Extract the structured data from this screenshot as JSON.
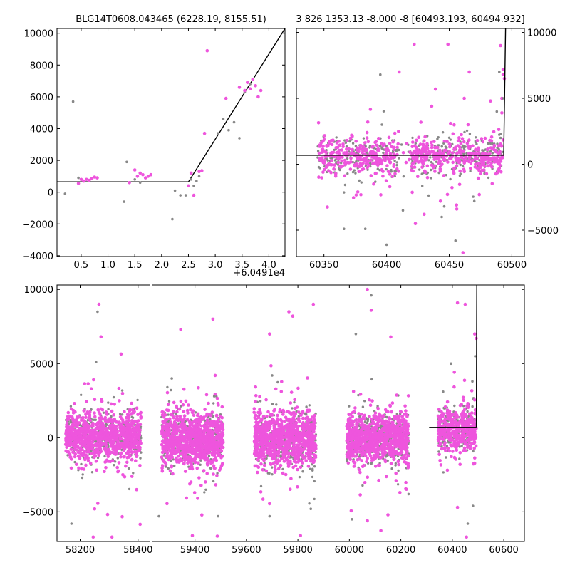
{
  "chart_data": [
    {
      "id": "tl",
      "type": "scatter",
      "title": "BLG14T0608.043465 (6228.19, 8155.51)",
      "offset_label": "+6.0491e4",
      "xlim": [
        0.05,
        4.3
      ],
      "ylim": [
        -4050,
        10300
      ],
      "xticks": [
        0.5,
        1.0,
        1.5,
        2.0,
        2.5,
        3.0,
        3.5,
        4.0
      ],
      "xtick_labels": [
        "0.5",
        "1.0",
        "1.5",
        "2.0",
        "2.5",
        "3.0",
        "3.5",
        "4.0"
      ],
      "yticks": [
        -4000,
        -2000,
        0,
        2000,
        4000,
        6000,
        8000,
        10000
      ],
      "ytick_labels": [
        "−4000",
        "−2000",
        "0",
        "2000",
        "4000",
        "6000",
        "8000",
        "10000"
      ],
      "y_axis_side": "left",
      "model": [
        [
          0.05,
          650
        ],
        [
          2.5,
          650
        ],
        [
          4.3,
          10300
        ]
      ],
      "series": [
        {
          "color": "#888888",
          "points": [
            [
              0.2,
              -100
            ],
            [
              0.35,
              5700
            ],
            [
              0.45,
              900
            ],
            [
              1.3,
              -600
            ],
            [
              1.35,
              1900
            ],
            [
              1.5,
              800
            ],
            [
              1.6,
              600
            ],
            [
              2.2,
              -1700
            ],
            [
              2.25,
              100
            ],
            [
              2.35,
              -200
            ],
            [
              2.45,
              -200
            ],
            [
              2.55,
              800
            ],
            [
              2.6,
              400
            ],
            [
              2.65,
              700
            ],
            [
              2.7,
              1000
            ],
            [
              3.05,
              3700
            ],
            [
              3.15,
              4600
            ],
            [
              3.25,
              3900
            ],
            [
              3.35,
              4400
            ],
            [
              3.45,
              3400
            ],
            [
              3.55,
              6300
            ],
            [
              3.65,
              6800
            ]
          ]
        },
        {
          "color": "#ee55dd",
          "points": [
            [
              0.45,
              550
            ],
            [
              0.5,
              800
            ],
            [
              0.55,
              700
            ],
            [
              0.6,
              800
            ],
            [
              0.65,
              750
            ],
            [
              0.7,
              850
            ],
            [
              0.75,
              950
            ],
            [
              0.8,
              900
            ],
            [
              1.4,
              600
            ],
            [
              1.5,
              1400
            ],
            [
              1.55,
              1000
            ],
            [
              1.6,
              1200
            ],
            [
              1.65,
              1100
            ],
            [
              1.7,
              900
            ],
            [
              1.75,
              1000
            ],
            [
              1.8,
              1100
            ],
            [
              2.5,
              400
            ],
            [
              2.55,
              1200
            ],
            [
              2.6,
              -200
            ],
            [
              2.7,
              1300
            ],
            [
              2.75,
              1350
            ],
            [
              2.8,
              3700
            ],
            [
              2.85,
              8900
            ],
            [
              3.2,
              5900
            ],
            [
              3.45,
              6600
            ],
            [
              3.55,
              6400
            ],
            [
              3.6,
              6900
            ],
            [
              3.65,
              6500
            ],
            [
              3.7,
              7100
            ],
            [
              3.75,
              6700
            ],
            [
              3.8,
              6000
            ],
            [
              3.85,
              6400
            ]
          ]
        }
      ]
    },
    {
      "id": "tr",
      "type": "scatter",
      "title": "3 826 1353.13 -8.000 -8 [60493.193, 60494.932]",
      "xlim": [
        60328,
        60510
      ],
      "ylim": [
        -7000,
        10300
      ],
      "xticks": [
        60350,
        60400,
        60450,
        60500
      ],
      "xtick_labels": [
        "60350",
        "60400",
        "60450",
        "60500"
      ],
      "yticks": [
        -5000,
        0,
        5000,
        10000
      ],
      "ytick_labels": [
        "−5000",
        "0",
        "5000",
        "10000"
      ],
      "y_axis_side": "right",
      "model": [
        [
          60328,
          680
        ],
        [
          60493.5,
          680
        ],
        [
          60495,
          10300
        ]
      ],
      "cloud": {
        "x_range": [
          60345,
          60493
        ],
        "center": 600,
        "spread": 700,
        "gap": [
          60410,
          60420
        ],
        "gray_count": 420,
        "pink_count": 620
      },
      "outliers": [
        {
          "color": "#ee55dd",
          "points": [
            [
              60422,
              9100
            ],
            [
              60449,
              9100
            ],
            [
              60410,
              7000
            ],
            [
              60466,
              7000
            ],
            [
              60439,
              5700
            ],
            [
              60462,
              5000
            ],
            [
              60483,
              4800
            ],
            [
              60436,
              4400
            ],
            [
              60465,
              3000
            ],
            [
              60451,
              3100
            ],
            [
              60491,
              9000
            ],
            [
              60493,
              6800
            ],
            [
              60493,
              7200
            ],
            [
              60494,
              6500
            ],
            [
              60492,
              5000
            ],
            [
              60492,
              3900
            ],
            [
              60461,
              -6700
            ],
            [
              60423,
              -4500
            ],
            [
              60430,
              -3800
            ],
            [
              60456,
              -3400
            ],
            [
              60443,
              -2800
            ],
            [
              60377,
              -2100
            ],
            [
              60474,
              -2300
            ]
          ]
        },
        {
          "color": "#888888",
          "points": [
            [
              60395,
              6800
            ],
            [
              60366,
              -4900
            ],
            [
              60383,
              -4900
            ],
            [
              60400,
              -6100
            ],
            [
              60455,
              -5800
            ],
            [
              60444,
              -4000
            ],
            [
              60413,
              -3500
            ],
            [
              60446,
              -3200
            ],
            [
              60470,
              -2800
            ],
            [
              60488,
              4000
            ],
            [
              60490,
              7000
            ],
            [
              60493,
              5000
            ],
            [
              60491,
              2000
            ]
          ]
        }
      ]
    },
    {
      "id": "bottom",
      "type": "scatter",
      "xlim_left": [
        58120,
        58440
      ],
      "xlim_right": [
        59235,
        60680
      ],
      "ylim": [
        -7000,
        10300
      ],
      "xticks": [
        58200,
        58400,
        59400,
        59600,
        59800,
        60000,
        60200,
        60400,
        60600
      ],
      "xtick_labels": [
        "58200",
        "58400",
        "59400",
        "59600",
        "59800",
        "60000",
        "60200",
        "60400",
        "60600"
      ],
      "yticks": [
        -5000,
        0,
        5000,
        10000
      ],
      "ytick_labels": [
        "−5000",
        "0",
        "5000",
        "10000"
      ],
      "y_axis_side": "left",
      "model": [
        [
          60310,
          680
        ],
        [
          60493.5,
          680
        ],
        [
          60495,
          10300
        ]
      ],
      "clouds": [
        {
          "x_range": [
            58150,
            58410
          ],
          "center": 150,
          "spread": 800,
          "gray_count": 380,
          "pink_count": 900
        },
        {
          "x_range": [
            59270,
            59510
          ],
          "center": -100,
          "spread": 850,
          "gray_count": 380,
          "pink_count": 900
        },
        {
          "x_range": [
            59630,
            59870
          ],
          "center": -100,
          "spread": 900,
          "gray_count": 380,
          "pink_count": 900
        },
        {
          "x_range": [
            59990,
            60230
          ],
          "center": -50,
          "spread": 850,
          "gray_count": 380,
          "pink_count": 900
        },
        {
          "x_range": [
            60345,
            60493
          ],
          "center": 600,
          "spread": 700,
          "gray_count": 220,
          "pink_count": 400
        }
      ],
      "outliers": [
        {
          "color": "#ee55dd",
          "points": [
            [
              58272,
              6800
            ],
            [
              58265,
              9000
            ],
            [
              59345,
              7300
            ],
            [
              59470,
              8000
            ],
            [
              59690,
              7000
            ],
            [
              59765,
              8500
            ],
            [
              59780,
              8200
            ],
            [
              59860,
              9000
            ],
            [
              60070,
              10000
            ],
            [
              60085,
              8600
            ],
            [
              60450,
              9000
            ],
            [
              60420,
              9100
            ],
            [
              60487,
              7000
            ],
            [
              60493,
              6700
            ],
            [
              58250,
              -4800
            ],
            [
              58245,
              -6700
            ],
            [
              58310,
              -6700
            ],
            [
              59390,
              -6600
            ],
            [
              59810,
              -6600
            ],
            [
              60070,
              -5600
            ],
            [
              60150,
              -5200
            ],
            [
              60420,
              -4700
            ],
            [
              60455,
              -6700
            ]
          ]
        },
        {
          "color": "#888888",
          "points": [
            [
              58260,
              8500
            ],
            [
              58255,
              5100
            ],
            [
              59310,
              4000
            ],
            [
              59475,
              2800
            ],
            [
              59700,
              4200
            ],
            [
              60025,
              7000
            ],
            [
              60085,
              9600
            ],
            [
              60395,
              5000
            ],
            [
              60478,
              3800
            ],
            [
              58170,
              -5800
            ],
            [
              58410,
              -1000
            ],
            [
              59260,
              -5300
            ],
            [
              59490,
              -5300
            ],
            [
              59690,
              -5300
            ],
            [
              59850,
              -4800
            ],
            [
              60010,
              -5500
            ],
            [
              60230,
              -3800
            ],
            [
              60460,
              -5800
            ],
            [
              60480,
              -4600
            ]
          ]
        }
      ]
    }
  ]
}
